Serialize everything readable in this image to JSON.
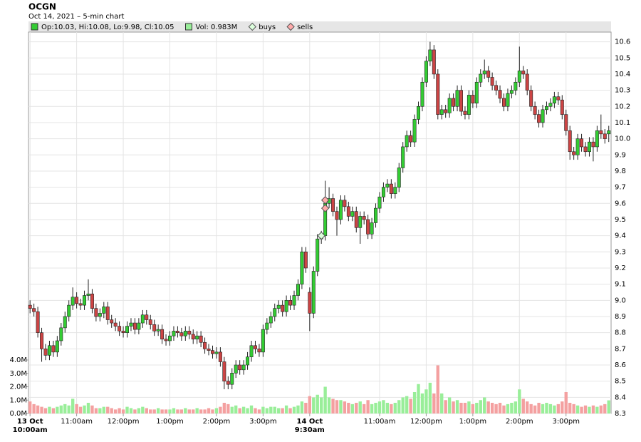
{
  "chart_data": {
    "type": "candlestick",
    "title": "OCGN",
    "subtitle": "Oct 14, 2021 – 5-min chart",
    "legend": [
      {
        "label": "Op:10.03, Hi:10.08, Lo:9.98, Cl:10.05",
        "color": "#33cc33",
        "shape": "square"
      },
      {
        "label": "Vol: 0.983M",
        "color": "#99ee99",
        "shape": "square"
      },
      {
        "label": "buys",
        "color": "#ddffdd",
        "shape": "diamond"
      },
      {
        "label": "sells",
        "color": "#ffaaaa",
        "shape": "diamond"
      }
    ],
    "open": [
      8.97,
      8.95,
      8.93,
      8.8,
      8.7,
      8.66,
      8.72,
      8.68,
      8.75,
      8.83,
      8.9,
      8.97,
      9.02,
      8.98,
      8.97,
      9.03,
      9.04,
      8.95,
      8.9,
      8.92,
      8.96,
      8.88,
      8.86,
      8.84,
      8.81,
      8.8,
      8.84,
      8.86,
      8.82,
      8.86,
      8.91,
      8.88,
      8.85,
      8.81,
      8.82,
      8.76,
      8.75,
      8.78,
      8.81,
      8.8,
      8.78,
      8.81,
      8.79,
      8.76,
      8.78,
      8.74,
      8.7,
      8.69,
      8.67,
      8.68,
      8.62,
      8.5,
      8.48,
      8.55,
      8.6,
      8.57,
      8.6,
      8.65,
      8.72,
      8.7,
      8.68,
      8.82,
      8.86,
      8.9,
      8.95,
      8.97,
      8.93,
      9.0,
      8.97,
      9.03,
      9.1,
      9.3,
      9.05,
      8.92,
      9.18,
      9.38,
      9.4,
      9.6,
      9.63,
      9.55,
      9.5,
      9.62,
      9.58,
      9.52,
      9.55,
      9.45,
      9.52,
      9.5,
      9.41,
      9.48,
      9.57,
      9.64,
      9.7,
      9.72,
      9.66,
      9.7,
      9.82,
      9.95,
      10.02,
      9.98,
      10.12,
      10.2,
      10.35,
      10.48,
      10.55,
      10.4,
      10.15,
      10.18,
      10.16,
      10.25,
      10.2,
      10.3,
      10.17,
      10.15,
      10.27,
      10.22,
      10.35,
      10.4,
      10.42,
      10.38,
      10.33,
      10.3,
      10.25,
      10.2,
      10.28,
      10.3,
      10.35,
      10.42,
      10.4,
      10.3,
      10.2,
      10.15,
      10.1,
      10.18,
      10.2,
      10.22,
      10.26,
      10.24,
      10.15,
      10.05,
      9.92,
      9.9,
      10.0,
      9.95,
      9.92,
      9.98,
      9.95,
      10.05,
      10.03,
      10.03
    ],
    "high": [
      9.0,
      8.98,
      8.96,
      8.83,
      8.73,
      8.75,
      8.75,
      8.78,
      8.86,
      8.93,
      9.0,
      9.08,
      9.05,
      9.01,
      9.06,
      9.13,
      9.07,
      8.98,
      8.95,
      8.99,
      8.99,
      8.91,
      8.89,
      8.87,
      8.84,
      8.87,
      8.89,
      8.89,
      8.89,
      8.94,
      8.94,
      8.91,
      8.88,
      8.85,
      8.85,
      8.79,
      8.81,
      8.84,
      8.84,
      8.83,
      8.84,
      8.84,
      8.82,
      8.81,
      8.81,
      8.77,
      8.73,
      8.72,
      8.71,
      8.71,
      8.65,
      8.53,
      8.58,
      8.63,
      8.63,
      8.63,
      8.68,
      8.75,
      8.75,
      8.73,
      8.85,
      8.89,
      8.93,
      8.98,
      9.0,
      9.0,
      9.03,
      9.03,
      9.06,
      9.13,
      9.33,
      9.33,
      9.08,
      9.21,
      9.41,
      9.43,
      9.74,
      9.7,
      9.66,
      9.58,
      9.65,
      9.65,
      9.61,
      9.58,
      9.58,
      9.55,
      9.55,
      9.53,
      9.51,
      9.6,
      9.67,
      9.73,
      9.75,
      9.75,
      9.73,
      9.85,
      9.98,
      10.05,
      10.05,
      10.15,
      10.23,
      10.38,
      10.51,
      10.6,
      10.58,
      10.43,
      10.21,
      10.21,
      10.28,
      10.28,
      10.33,
      10.33,
      10.2,
      10.3,
      10.3,
      10.38,
      10.43,
      10.49,
      10.45,
      10.41,
      10.36,
      10.33,
      10.28,
      10.31,
      10.33,
      10.38,
      10.57,
      10.45,
      10.43,
      10.33,
      10.23,
      10.18,
      10.21,
      10.23,
      10.25,
      10.29,
      10.29,
      10.27,
      10.18,
      10.08,
      9.95,
      10.03,
      10.03,
      9.98,
      10.01,
      10.01,
      10.08,
      10.15,
      10.06,
      10.08
    ],
    "low": [
      8.92,
      8.9,
      8.77,
      8.62,
      8.63,
      8.63,
      8.65,
      8.65,
      8.72,
      8.8,
      8.87,
      8.94,
      8.95,
      8.94,
      8.94,
      9.0,
      8.92,
      8.87,
      8.87,
      8.89,
      8.85,
      8.83,
      8.81,
      8.78,
      8.77,
      8.77,
      8.81,
      8.79,
      8.79,
      8.83,
      8.85,
      8.82,
      8.78,
      8.78,
      8.73,
      8.72,
      8.72,
      8.75,
      8.77,
      8.75,
      8.75,
      8.76,
      8.73,
      8.73,
      8.71,
      8.67,
      8.66,
      8.64,
      8.64,
      8.59,
      8.45,
      8.45,
      8.45,
      8.52,
      8.54,
      8.54,
      8.57,
      8.62,
      8.67,
      8.65,
      8.65,
      8.79,
      8.83,
      8.87,
      8.92,
      8.9,
      8.9,
      8.94,
      8.94,
      9.0,
      9.07,
      9.17,
      8.81,
      8.89,
      9.15,
      9.35,
      9.37,
      9.57,
      9.52,
      9.4,
      9.47,
      9.55,
      9.49,
      9.49,
      9.42,
      9.35,
      9.47,
      9.38,
      9.38,
      9.45,
      9.54,
      9.61,
      9.67,
      9.63,
      9.63,
      9.67,
      9.79,
      9.92,
      9.95,
      9.95,
      10.09,
      10.17,
      10.32,
      10.45,
      10.37,
      10.12,
      10.12,
      10.13,
      10.13,
      10.17,
      10.17,
      10.14,
      10.12,
      10.12,
      10.19,
      10.19,
      10.32,
      10.37,
      10.35,
      10.3,
      10.27,
      10.22,
      10.17,
      10.17,
      10.25,
      10.27,
      10.32,
      10.37,
      10.27,
      10.17,
      10.12,
      10.07,
      10.07,
      10.15,
      10.17,
      10.19,
      10.21,
      10.12,
      10.02,
      9.87,
      9.87,
      9.87,
      9.92,
      9.89,
      9.89,
      9.86,
      9.92,
      10.0,
      9.97,
      9.98
    ],
    "close": [
      8.95,
      8.93,
      8.8,
      8.7,
      8.66,
      8.72,
      8.68,
      8.75,
      8.83,
      8.9,
      8.97,
      9.02,
      8.98,
      8.97,
      9.03,
      9.04,
      8.95,
      8.9,
      8.92,
      8.96,
      8.88,
      8.86,
      8.84,
      8.81,
      8.8,
      8.84,
      8.86,
      8.82,
      8.86,
      8.91,
      8.88,
      8.85,
      8.81,
      8.82,
      8.76,
      8.75,
      8.78,
      8.81,
      8.8,
      8.78,
      8.81,
      8.79,
      8.76,
      8.78,
      8.74,
      8.7,
      8.69,
      8.67,
      8.68,
      8.62,
      8.5,
      8.48,
      8.55,
      8.6,
      8.57,
      8.6,
      8.65,
      8.72,
      8.7,
      8.68,
      8.82,
      8.86,
      8.9,
      8.95,
      8.97,
      8.93,
      9.0,
      8.97,
      9.03,
      9.1,
      9.3,
      9.2,
      8.92,
      9.18,
      9.38,
      9.4,
      9.6,
      9.63,
      9.55,
      9.5,
      9.62,
      9.58,
      9.52,
      9.55,
      9.45,
      9.52,
      9.5,
      9.41,
      9.48,
      9.57,
      9.64,
      9.7,
      9.72,
      9.66,
      9.7,
      9.82,
      9.95,
      10.02,
      9.98,
      10.12,
      10.2,
      10.35,
      10.48,
      10.55,
      10.4,
      10.15,
      10.18,
      10.16,
      10.25,
      10.2,
      10.3,
      10.17,
      10.15,
      10.27,
      10.22,
      10.35,
      10.4,
      10.42,
      10.38,
      10.33,
      10.3,
      10.25,
      10.2,
      10.28,
      10.3,
      10.35,
      10.42,
      10.4,
      10.3,
      10.2,
      10.15,
      10.1,
      10.18,
      10.2,
      10.22,
      10.26,
      10.24,
      10.15,
      10.05,
      9.92,
      9.9,
      10.0,
      9.95,
      9.92,
      9.98,
      9.95,
      10.05,
      10.03,
      10.0,
      10.05
    ],
    "volume": [
      0.9,
      0.7,
      0.6,
      0.5,
      0.4,
      0.5,
      0.4,
      0.5,
      0.6,
      0.7,
      0.6,
      1.1,
      0.7,
      0.5,
      0.6,
      0.8,
      0.6,
      0.4,
      0.4,
      0.5,
      0.5,
      0.4,
      0.3,
      0.4,
      0.3,
      0.5,
      0.4,
      0.3,
      0.4,
      0.5,
      0.4,
      0.3,
      0.3,
      0.4,
      0.3,
      0.3,
      0.3,
      0.4,
      0.3,
      0.3,
      0.4,
      0.3,
      0.3,
      0.4,
      0.3,
      0.3,
      0.4,
      0.3,
      0.4,
      0.5,
      0.8,
      0.7,
      0.5,
      0.6,
      0.4,
      0.5,
      0.4,
      0.6,
      0.4,
      0.3,
      0.5,
      0.4,
      0.5,
      0.5,
      0.4,
      0.4,
      0.6,
      0.4,
      0.5,
      0.6,
      0.9,
      0.8,
      1.3,
      1.2,
      1.4,
      1.2,
      2.0,
      1.2,
      1.1,
      1.0,
      1.0,
      0.9,
      0.8,
      0.7,
      0.8,
      0.9,
      0.7,
      1.0,
      0.7,
      0.8,
      0.9,
      1.0,
      0.8,
      0.7,
      0.8,
      1.0,
      1.2,
      1.3,
      1.1,
      1.6,
      2.2,
      1.5,
      1.8,
      2.3,
      1.5,
      3.6,
      1.5,
      1.0,
      1.2,
      0.9,
      1.0,
      0.8,
      0.8,
      0.9,
      0.7,
      0.8,
      1.0,
      1.2,
      0.9,
      0.8,
      0.7,
      0.8,
      0.6,
      0.7,
      0.8,
      0.9,
      1.8,
      1.1,
      0.9,
      0.7,
      0.6,
      0.8,
      0.7,
      0.8,
      0.7,
      0.6,
      0.7,
      0.9,
      1.6,
      0.8,
      0.7,
      0.6,
      0.5,
      0.6,
      0.5,
      0.6,
      0.5,
      0.6,
      0.7,
      0.983
    ],
    "buys": {
      "x": [
        75
      ],
      "price": [
        9.4
      ]
    },
    "sells": {
      "x": [
        76,
        76
      ],
      "price": [
        9.62,
        9.57
      ]
    },
    "up_color": "#33cc33",
    "down_color": "#cc4444",
    "vol_up_color": "#99ee99",
    "vol_down_color": "#f4a0a0",
    "xlim": [
      -0.4,
      149.6
    ],
    "xticks": [
      {
        "value": 0,
        "label": "13 Oct",
        "label2": "10:00am"
      },
      {
        "value": 12,
        "label": "11:00am"
      },
      {
        "value": 24,
        "label": "12:00pm"
      },
      {
        "value": 36,
        "label": "1:00pm"
      },
      {
        "value": 48,
        "label": "2:00pm"
      },
      {
        "value": 60,
        "label": "3:00pm"
      },
      {
        "value": 72,
        "label": "14 Oct",
        "label2": "9:30am"
      },
      {
        "value": 90,
        "label": "11:00am"
      },
      {
        "value": 102,
        "label": "12:00pm"
      },
      {
        "value": 114,
        "label": "1:00pm"
      },
      {
        "value": 126,
        "label": "2:00pm"
      },
      {
        "value": 138,
        "label": "3:00pm"
      }
    ],
    "ylim": [
      8.3,
      10.66
    ],
    "yticks": [
      8.3,
      8.4,
      8.5,
      8.6,
      8.7,
      8.8,
      8.9,
      {
        "value": 9,
        "label": "9.0"
      },
      9.1,
      9.2,
      9.3,
      9.4,
      9.5,
      9.6,
      9.7,
      9.8,
      9.9,
      {
        "value": 10,
        "label": "10.0"
      },
      10.1,
      10.2,
      10.3,
      10.4,
      10.5,
      10.6
    ],
    "y2lim": [
      0,
      4
    ],
    "y2ticks": [
      {
        "value": 0,
        "label": "0.0M"
      },
      {
        "value": 1,
        "label": "1.0M"
      },
      {
        "value": 2,
        "label": "2.0M"
      },
      {
        "value": 3,
        "label": "3.0M"
      },
      {
        "value": 4,
        "label": "4.0M"
      }
    ],
    "grid": true
  }
}
